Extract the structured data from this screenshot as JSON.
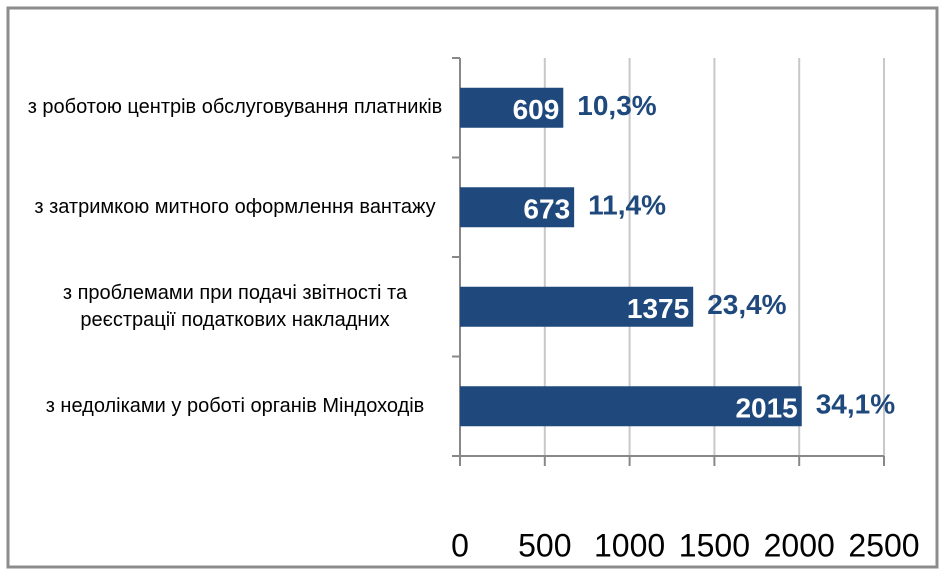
{
  "chart_data": {
    "type": "barh",
    "categories": [
      "з роботою центрів обслуговування платників",
      "з затримкою митного оформлення вантажу",
      "з проблемами при подачі звітності та реєстрації податкових накладних",
      "з недоліками у роботі органів Міндоходів"
    ],
    "values": [
      609,
      673,
      1375,
      2015
    ],
    "percent_labels": [
      "10,3%",
      "11,4%",
      "23,4%",
      "34,1%"
    ],
    "color": "#1f497d",
    "xlim": [
      0,
      2500
    ],
    "xticks": [
      0,
      500,
      1000,
      1500,
      2000,
      2500
    ],
    "grid": true
  }
}
